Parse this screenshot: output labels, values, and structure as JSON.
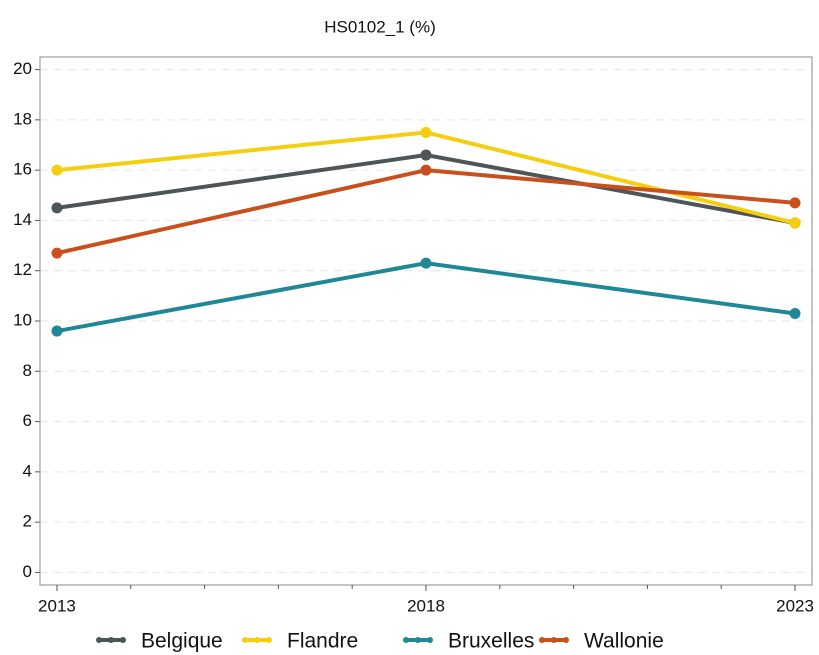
{
  "chart_data": {
    "type": "line",
    "title": "HS0102_1 (%)",
    "x": [
      2013,
      2018,
      2023
    ],
    "series": [
      {
        "name": "Belgique",
        "color": "#4d5559",
        "values": [
          14.5,
          16.6,
          13.9
        ]
      },
      {
        "name": "Flandre",
        "color": "#f5cf0f",
        "values": [
          16.0,
          17.5,
          13.9
        ]
      },
      {
        "name": "Bruxelles",
        "color": "#1f8896",
        "values": [
          9.6,
          12.3,
          10.3
        ]
      },
      {
        "name": "Wallonie",
        "color": "#c9501c",
        "values": [
          12.7,
          16.0,
          14.7
        ]
      }
    ],
    "xlim": [
      2012.77,
      2023.23
    ],
    "xticks": [
      2013,
      2018,
      2023
    ],
    "xminor_ticks": [
      2014,
      2015,
      2016,
      2017,
      2019,
      2020,
      2021,
      2022
    ],
    "ylim": [
      -0.5,
      20.5
    ],
    "yticks": [
      0,
      2,
      4,
      6,
      8,
      10,
      12,
      14,
      16,
      18,
      20
    ],
    "grid": true,
    "legend": "bottom"
  }
}
